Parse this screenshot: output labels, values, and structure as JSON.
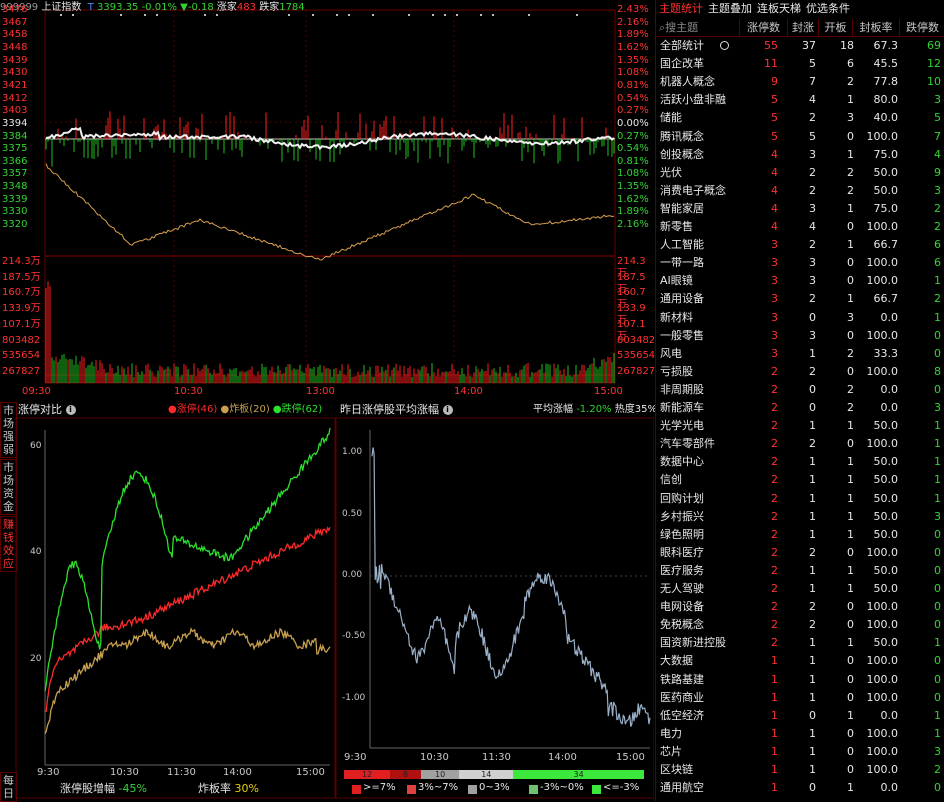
{
  "top_bar": {
    "code": "999999",
    "name": "上证指数",
    "t_label": "T",
    "price": "3393.35",
    "pct": "-0.01%",
    "arrow": "▼",
    "change": "-0.18",
    "up_label": "涨家",
    "up_count": "483",
    "down_label": "跌家",
    "down_count": "1784"
  },
  "price_axis_left": [
    "3476",
    "3467",
    "3458",
    "3448",
    "3439",
    "3430",
    "3421",
    "3412",
    "3403",
    "3394",
    "3384",
    "3375",
    "3366",
    "3357",
    "3348",
    "3339",
    "3330",
    "3320"
  ],
  "price_axis_right": [
    "2.43%",
    "2.16%",
    "1.89%",
    "1.62%",
    "1.35%",
    "1.08%",
    "0.81%",
    "0.54%",
    "0.27%",
    "0.00%",
    "0.27%",
    "0.54%",
    "0.81%",
    "1.08%",
    "1.35%",
    "1.62%",
    "1.89%",
    "2.16%"
  ],
  "volume_axis_left": [
    "214.3万",
    "187.5万",
    "160.7万",
    "133.9万",
    "107.1万",
    "803482",
    "535654",
    "267827"
  ],
  "volume_axis_right": [
    "214.3万",
    "187.5万",
    "160.7万",
    "133.9万",
    "107.1万",
    "803482",
    "535654",
    "267827"
  ],
  "time_axis": [
    "09:30",
    "10:30",
    "13:00",
    "14:00",
    "15:00"
  ],
  "side_tabs": [
    {
      "label": "市场强弱",
      "active": false
    },
    {
      "label": "市场资金",
      "active": false
    },
    {
      "label": "赚钱效应",
      "active": true
    },
    {
      "label": "每日",
      "active": false
    }
  ],
  "limit_panel": {
    "title": "涨停对比",
    "legend": [
      {
        "label": "涨停",
        "count": "(46)",
        "color": "#ff2a2a"
      },
      {
        "label": "炸板",
        "count": "(20)",
        "color": "#c8a050"
      },
      {
        "label": "跌停",
        "count": "(62)",
        "color": "#2ce02c"
      }
    ],
    "y_ticks": [
      "60",
      "40",
      "20"
    ],
    "x_ticks": [
      "9:30",
      "10:30",
      "11:30",
      "14:00",
      "15:00"
    ],
    "footer_left_label": "涨停股增幅",
    "footer_left_value": "-45%",
    "footer_right_label": "炸板率",
    "footer_right_value": "30%"
  },
  "avg_panel": {
    "title": "昨日涨停股平均涨幅",
    "avg_label": "平均涨幅",
    "avg_value": "-1.20%",
    "heat_label": "热度",
    "heat_value": "35%",
    "y_ticks": [
      "1.00",
      "0.50",
      "0.00",
      "-0.50",
      "-1.00"
    ],
    "x_ticks": [
      "9:30",
      "10:30",
      "11:30",
      "14:00",
      "15:00"
    ],
    "dist": [
      {
        "count": "12",
        "color": "#e02020"
      },
      {
        "count": "8",
        "color": "#b01010"
      },
      {
        "count": "10",
        "color": "#a0a0a0"
      },
      {
        "count": "14",
        "color": "#d0d0d0"
      },
      {
        "count": "34",
        "color": "#3ce83c"
      }
    ],
    "dist_legend": [
      {
        "label": ">=7%",
        "color": "#e02020"
      },
      {
        "label": "3%~7%",
        "color": "#e04040"
      },
      {
        "label": "0~3%",
        "color": "#a0a0a0"
      },
      {
        "label": "-3%~0%",
        "color": "#70c070"
      },
      {
        "label": "<=-3%",
        "color": "#3ce83c"
      }
    ]
  },
  "right_panel": {
    "tabs": [
      {
        "label": "主题统计",
        "active": true
      },
      {
        "label": "主题叠加",
        "active": false
      },
      {
        "label": "连板天梯",
        "active": false
      },
      {
        "label": "优选条件",
        "active": false
      }
    ],
    "search_placeholder": "搜主题",
    "columns": [
      "涨停数",
      "封涨",
      "开板",
      "封板率",
      "跌停数"
    ],
    "rows": [
      [
        "全部统计",
        "55",
        "37",
        "18",
        "67.3",
        "69"
      ],
      [
        "国企改革",
        "11",
        "5",
        "6",
        "45.5",
        "12"
      ],
      [
        "机器人概念",
        "9",
        "7",
        "2",
        "77.8",
        "10"
      ],
      [
        "活跃小盘非融",
        "5",
        "4",
        "1",
        "80.0",
        "3"
      ],
      [
        "储能",
        "5",
        "2",
        "3",
        "40.0",
        "5"
      ],
      [
        "腾讯概念",
        "5",
        "5",
        "0",
        "100.0",
        "7"
      ],
      [
        "创投概念",
        "4",
        "3",
        "1",
        "75.0",
        "4"
      ],
      [
        "光伏",
        "4",
        "2",
        "2",
        "50.0",
        "9"
      ],
      [
        "消费电子概念",
        "4",
        "2",
        "2",
        "50.0",
        "3"
      ],
      [
        "智能家居",
        "4",
        "3",
        "1",
        "75.0",
        "2"
      ],
      [
        "新零售",
        "4",
        "4",
        "0",
        "100.0",
        "2"
      ],
      [
        "人工智能",
        "3",
        "2",
        "1",
        "66.7",
        "6"
      ],
      [
        "一带一路",
        "3",
        "3",
        "0",
        "100.0",
        "6"
      ],
      [
        "AI眼镜",
        "3",
        "3",
        "0",
        "100.0",
        "1"
      ],
      [
        "通用设备",
        "3",
        "2",
        "1",
        "66.7",
        "2"
      ],
      [
        "新材料",
        "3",
        "0",
        "3",
        "0.0",
        "1"
      ],
      [
        "一般零售",
        "3",
        "3",
        "0",
        "100.0",
        "0"
      ],
      [
        "风电",
        "3",
        "1",
        "2",
        "33.3",
        "0"
      ],
      [
        "亏损股",
        "2",
        "2",
        "0",
        "100.0",
        "8"
      ],
      [
        "非周期股",
        "2",
        "0",
        "2",
        "0.0",
        "0"
      ],
      [
        "新能源车",
        "2",
        "0",
        "2",
        "0.0",
        "3"
      ],
      [
        "光学光电",
        "2",
        "1",
        "1",
        "50.0",
        "1"
      ],
      [
        "汽车零部件",
        "2",
        "2",
        "0",
        "100.0",
        "1"
      ],
      [
        "数据中心",
        "2",
        "1",
        "1",
        "50.0",
        "1"
      ],
      [
        "信创",
        "2",
        "1",
        "1",
        "50.0",
        "1"
      ],
      [
        "回购计划",
        "2",
        "1",
        "1",
        "50.0",
        "1"
      ],
      [
        "乡村振兴",
        "2",
        "1",
        "1",
        "50.0",
        "3"
      ],
      [
        "绿色照明",
        "2",
        "1",
        "1",
        "50.0",
        "0"
      ],
      [
        "眼科医疗",
        "2",
        "2",
        "0",
        "100.0",
        "0"
      ],
      [
        "医疗服务",
        "2",
        "1",
        "1",
        "50.0",
        "0"
      ],
      [
        "无人驾驶",
        "2",
        "1",
        "1",
        "50.0",
        "0"
      ],
      [
        "电网设备",
        "2",
        "2",
        "0",
        "100.0",
        "0"
      ],
      [
        "免税概念",
        "2",
        "2",
        "0",
        "100.0",
        "0"
      ],
      [
        "国资新进控股",
        "2",
        "1",
        "1",
        "50.0",
        "1"
      ],
      [
        "大数据",
        "1",
        "1",
        "0",
        "100.0",
        "0"
      ],
      [
        "铁路基建",
        "1",
        "1",
        "0",
        "100.0",
        "0"
      ],
      [
        "医药商业",
        "1",
        "1",
        "0",
        "100.0",
        "0"
      ],
      [
        "低空经济",
        "1",
        "0",
        "1",
        "0.0",
        "1"
      ],
      [
        "电力",
        "1",
        "1",
        "0",
        "100.0",
        "1"
      ],
      [
        "芯片",
        "1",
        "1",
        "0",
        "100.0",
        "3"
      ],
      [
        "区块链",
        "1",
        "1",
        "0",
        "100.0",
        "2"
      ],
      [
        "通用航空",
        "1",
        "0",
        "1",
        "0.0",
        "0"
      ]
    ]
  }
}
